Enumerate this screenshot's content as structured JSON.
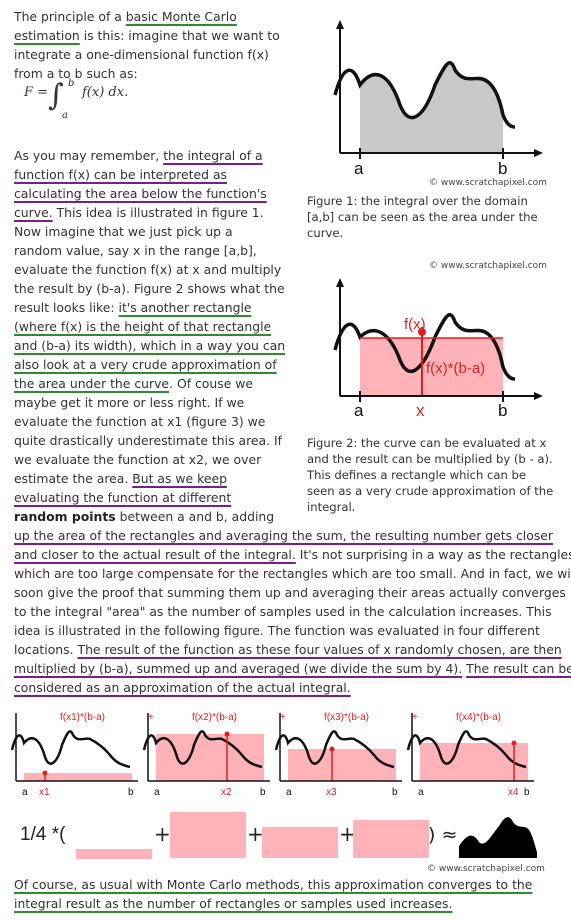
{
  "para1": {
    "line1_pre": "The principle of a ",
    "line1_link": "basic Monte Carlo",
    "line2_link": "estimation",
    "line2_post": " is this: imagine that we want to",
    "line3": "integrate a one-dimensional function f(x)",
    "line4": "from a to b such as:"
  },
  "equation": {
    "lhs": "F =",
    "integral": "∫",
    "upper": "b",
    "lower": "a",
    "integrand": "f(x) dx."
  },
  "para2": {
    "l1_pre": "As you may remember, ",
    "l1_hl": "the integral of a",
    "l2_hl": "function f(x) can be interpreted as",
    "l3_hl": "calculating the area below the function's",
    "l4_hl": "curve.",
    "l4_post": " This idea is illustrated in figure 1.",
    "l5": "Now imagine that we just pick up a",
    "l6": "random value, say x in the range [a,b],",
    "l7": "evaluate the function f(x) at x and multiply",
    "l8": "the result by (b-a). Figure 2 shows what the",
    "l9_pre": "result looks like: ",
    "l9_hl": "it's another rectangle",
    "l10_hl": "(where f(x) is the height of that rectangle",
    "l11_hl": "and (b-a) its width), which in a way you can",
    "l12_hl": "also look at a very crude approximation of",
    "l13_hl": "the area under the curve",
    "l13_post": ". Of couse we",
    "l14": "maybe get it more or less right. If we",
    "l15": "evaluate the function at x1 (figure 3) we",
    "l16": "quite drastically underestimate this area. If",
    "l17": "we evaluate the function at x2, we over",
    "l18_pre": "estimate the area. ",
    "l18_hl": "But as we keep",
    "l19_hl": "evaluating the function at different",
    "l20_bold": "random points",
    "l20_post": " between a and b, adding",
    "l21_hl": "up the area of the rectangles and averaging the sum, the resulting number gets closer",
    "l22_hl": "and closer to the actual result of the integral.",
    "l22_post": " It's not surprising in a way as the rectangles",
    "l23": "which are too large compensate for the rectangles which are too small. And in fact, we will",
    "l24": "soon give the proof that summing them up and averaging their areas actually converges",
    "l25": "to the integral \"area\" as the number of samples used in the calculation increases. This",
    "l26": "idea is illustrated in the following figure. The function was evaluated in four different",
    "l27_pre": "locations. ",
    "l27_hl": "The result of the function as these four values of x randomly chosen, are then",
    "l28_hl": "multiplied by (b-a), summed up and averaged (we divide the sum by 4).",
    "l28_post": " ",
    "l28_hl2": "The result can be",
    "l29_hl": "considered as an approximation of the actual integral."
  },
  "figure1": {
    "label_a": "a",
    "label_b": "b",
    "copyright": "© www.scratchapixel.com",
    "caption1": "Figure 1: the integral over the domain",
    "caption2": "[a,b] can be seen as the area under the",
    "caption3": "curve."
  },
  "figure2": {
    "copyright": "© www.scratchapixel.com",
    "label_fx": "f(x)",
    "label_area": "f(x)*(b-a)",
    "label_a": "a",
    "label_x": "x",
    "label_b": "b",
    "caption1": "Figure 2: the curve can be evaluated at x",
    "caption2": "and the result can be multiplied by (b - a).",
    "caption3": "This defines a rectangle which can be",
    "caption4": "seen as a very crude approximation of the",
    "caption5": "integral."
  },
  "figure3": {
    "panels": [
      {
        "title": "f(x1)*(b-a)",
        "a": "a",
        "x": "x1",
        "b": "b"
      },
      {
        "title": "f(x2)*(b-a)",
        "a": "a",
        "x": "x2",
        "b": "b"
      },
      {
        "title": "f(x3)*(b-a)",
        "a": "a",
        "x": "x3",
        "b": "b"
      },
      {
        "title": "f(x4)*(b-a)",
        "a": "a",
        "x": "x4",
        "b": "b"
      }
    ],
    "plus": "+",
    "formula_prefix": "1/4 *(",
    "formula_plus": "+",
    "formula_suffix": ") ≈",
    "copyright": "© www.scratchapixel.com"
  },
  "para3": {
    "l1_hl": "Of course, as usual with Monte Carlo methods, this approximation converges to the",
    "l2_hl": "integral result as the number of rectangles or samples used increases."
  },
  "colors": {
    "rect_fill": "#ffb3b8",
    "rect_line": "#e02020",
    "underline_green": "#2e8b2e",
    "underline_purple": "#7a1f8a"
  }
}
